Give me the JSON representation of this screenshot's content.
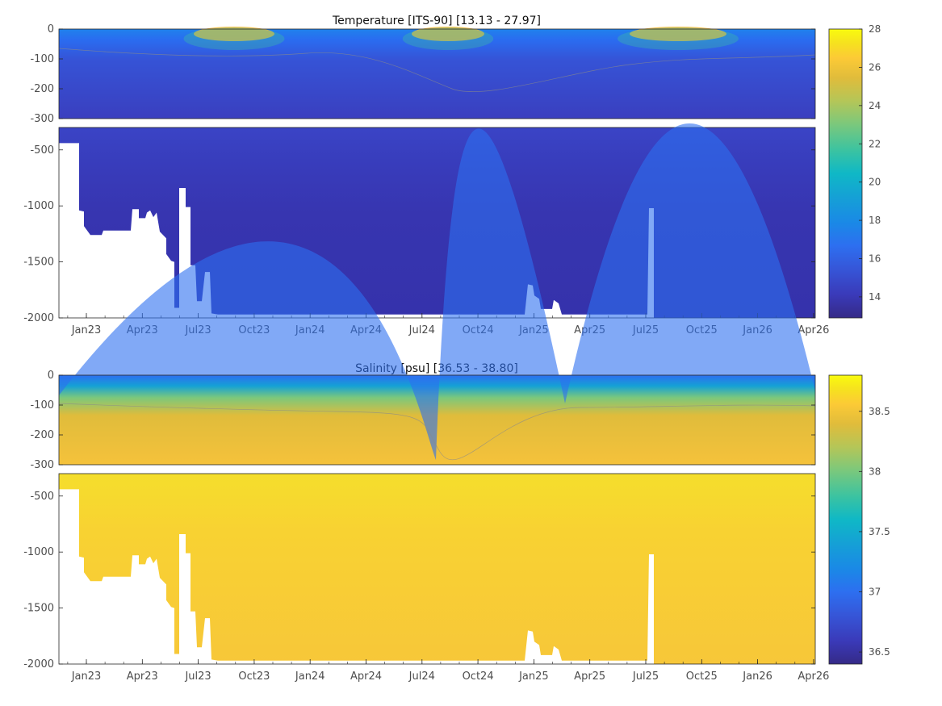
{
  "chart_data": [
    {
      "type": "heatmap",
      "title": "Temperature [ITS-90]   [13.13 - 27.97]",
      "variable_range": [
        13.13,
        27.97
      ],
      "x_tick_labels": [
        "Jan23",
        "Apr23",
        "Jul23",
        "Oct23",
        "Jan24",
        "Apr24",
        "Jul24",
        "Oct24",
        "Jan25",
        "Apr25",
        "Jul25",
        "Oct25",
        "Jan26",
        "Apr26"
      ],
      "upper_panel": {
        "ylim": [
          -300,
          0
        ],
        "y_tick_labels": [
          "0",
          "-100",
          "-200",
          "-300"
        ],
        "y_ticks": [
          0,
          -100,
          -200,
          -300
        ]
      },
      "lower_panel": {
        "ylim": [
          -2000,
          -300
        ],
        "y_tick_labels": [
          "-500",
          "-1000",
          "-1500",
          "-2000"
        ],
        "y_ticks": [
          -500,
          -1000,
          -1500,
          -2000
        ]
      },
      "colorbar": {
        "range": [
          12.9,
          28
        ],
        "tick_labels": [
          "14",
          "16",
          "18",
          "20",
          "22",
          "24",
          "26",
          "28"
        ],
        "ticks": [
          14,
          16,
          18,
          20,
          22,
          24,
          26,
          28
        ],
        "colormap": "parula"
      }
    },
    {
      "type": "heatmap",
      "title": "Salinity [psu]   [36.53 - 38.80]",
      "variable_range": [
        36.53,
        38.8
      ],
      "x_tick_labels": [
        "Jan23",
        "Apr23",
        "Jul23",
        "Oct23",
        "Jan24",
        "Apr24",
        "Jul24",
        "Oct24",
        "Jan25",
        "Apr25",
        "Jul25",
        "Oct25",
        "Jan26",
        "Apr26"
      ],
      "upper_panel": {
        "ylim": [
          -300,
          0
        ],
        "y_tick_labels": [
          "0",
          "-100",
          "-200",
          "-300"
        ],
        "y_ticks": [
          0,
          -100,
          -200,
          -300
        ]
      },
      "lower_panel": {
        "ylim": [
          -2000,
          -300
        ],
        "y_tick_labels": [
          "-500",
          "-1000",
          "-1500",
          "-2000"
        ],
        "y_ticks": [
          -500,
          -1000,
          -1500,
          -2000
        ]
      },
      "colorbar": {
        "range": [
          36.4,
          38.8
        ],
        "tick_labels": [
          "36.5",
          "37",
          "37.5",
          "38",
          "38.5"
        ],
        "ticks": [
          36.5,
          37,
          37.5,
          38,
          38.5
        ],
        "colormap": "parula"
      }
    }
  ],
  "colors": {
    "parula": [
      "#352a87",
      "#3a3ab9",
      "#3656d8",
      "#2d6ff0",
      "#1a89e6",
      "#15a1d5",
      "#0fb8c6",
      "#3bc3a1",
      "#7bc87c",
      "#b4c658",
      "#e0bc3b",
      "#fcca36",
      "#f6e11f",
      "#f9fb0e"
    ],
    "axis": "#262626",
    "tick_text": "#4d4d4d",
    "contour": "#8a8a8a"
  }
}
